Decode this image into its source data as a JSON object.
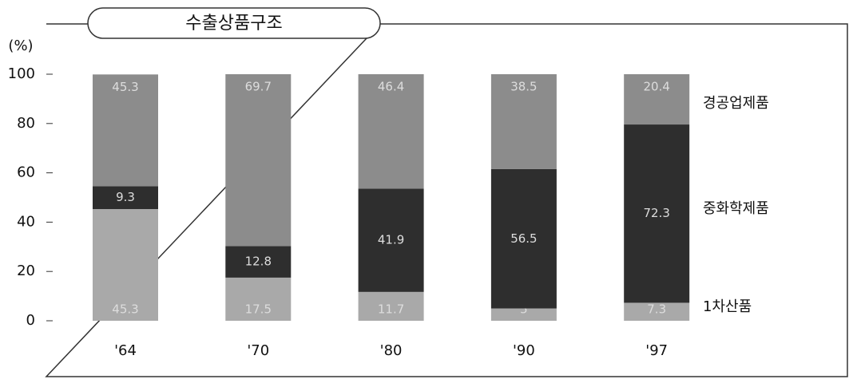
{
  "chart_data": {
    "type": "stacked_bar",
    "title": "수출상품구조",
    "y_label": "(%)",
    "categories": [
      "'64",
      "'70",
      "'80",
      "'90",
      "'97"
    ],
    "series": [
      {
        "name": "1차산품",
        "color": "#a9a9a9",
        "values": [
          45.3,
          17.5,
          11.7,
          5.0,
          7.3
        ]
      },
      {
        "name": "중화학제품",
        "color": "#2e2e2e",
        "values": [
          9.3,
          12.8,
          41.9,
          56.5,
          72.3
        ]
      },
      {
        "name": "경공업제품",
        "color": "#8c8c8c",
        "values": [
          45.3,
          69.7,
          46.4,
          38.5,
          20.4
        ]
      }
    ],
    "ylim": [
      0,
      100
    ],
    "yticks": [
      0,
      20,
      40,
      60,
      80,
      100
    ]
  }
}
